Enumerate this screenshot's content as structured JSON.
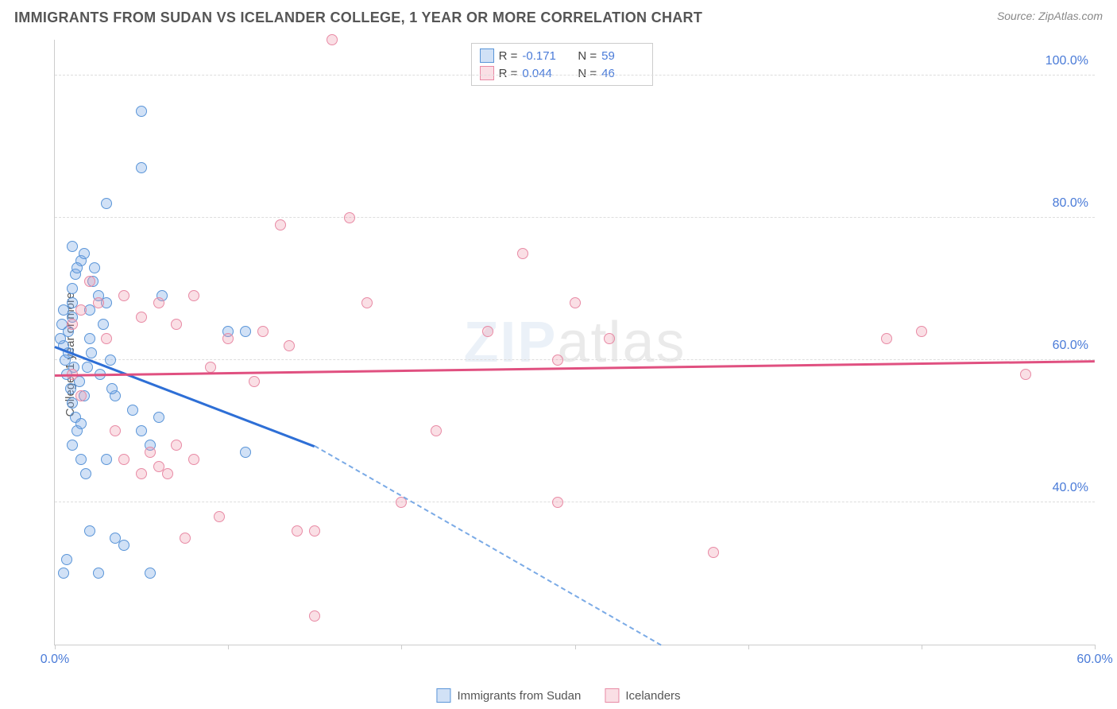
{
  "title": "IMMIGRANTS FROM SUDAN VS ICELANDER COLLEGE, 1 YEAR OR MORE CORRELATION CHART",
  "source": "Source: ZipAtlas.com",
  "ylabel": "College, 1 year or more",
  "watermark": {
    "bold": "ZIP",
    "thin": "atlas"
  },
  "chart": {
    "type": "scatter",
    "xlim": [
      0,
      60
    ],
    "ylim": [
      20,
      105
    ],
    "yticks": [
      {
        "v": 40,
        "label": "40.0%"
      },
      {
        "v": 60,
        "label": "60.0%"
      },
      {
        "v": 80,
        "label": "80.0%"
      },
      {
        "v": 100,
        "label": "100.0%"
      }
    ],
    "xticks": [
      0,
      10,
      20,
      30,
      40,
      50,
      60
    ],
    "xtick_labels": {
      "0": "0.0%",
      "60": "60.0%"
    },
    "grid_color": "#dddddd",
    "background_color": "#ffffff",
    "point_radius": 7,
    "colors": {
      "series_a_fill": "rgba(122,170,230,0.35)",
      "series_a_stroke": "#5a95d8",
      "series_a_trend": "#2e6fd6",
      "series_b_fill": "rgba(240,150,170,0.3)",
      "series_b_stroke": "#e88aa5",
      "series_b_trend": "#e05080",
      "accent_text": "#4a7bd8"
    },
    "series": [
      {
        "key": "a",
        "name": "Immigrants from Sudan",
        "R": "-0.171",
        "N": "59",
        "trend": {
          "x1": 0,
          "y1": 62,
          "x2_solid": 15,
          "y2_solid": 48,
          "x2_dash": 35,
          "y2_dash": 20
        },
        "points": [
          [
            0.5,
            62
          ],
          [
            0.8,
            64
          ],
          [
            1,
            66
          ],
          [
            1,
            68
          ],
          [
            1,
            70
          ],
          [
            1.2,
            72
          ],
          [
            1.5,
            74
          ],
          [
            0.6,
            60
          ],
          [
            0.7,
            58
          ],
          [
            0.9,
            56
          ],
          [
            1,
            54
          ],
          [
            1.2,
            52
          ],
          [
            1.3,
            50
          ],
          [
            1.5,
            51
          ],
          [
            1.7,
            55
          ],
          [
            2,
            63
          ],
          [
            2,
            67
          ],
          [
            2.2,
            71
          ],
          [
            2.5,
            69
          ],
          [
            2.8,
            65
          ],
          [
            3,
            68
          ],
          [
            3,
            82
          ],
          [
            3.2,
            60
          ],
          [
            3.5,
            55
          ],
          [
            3.5,
            35
          ],
          [
            4,
            34
          ],
          [
            4.5,
            53
          ],
          [
            5,
            95
          ],
          [
            5,
            87
          ],
          [
            5,
            50
          ],
          [
            5.5,
            48
          ],
          [
            5.5,
            30
          ],
          [
            6,
            52
          ],
          [
            6.2,
            69
          ],
          [
            1,
            48
          ],
          [
            1.5,
            46
          ],
          [
            1.8,
            44
          ],
          [
            2,
            36
          ],
          [
            2.5,
            30
          ],
          [
            0.5,
            30
          ],
          [
            0.7,
            32
          ],
          [
            3,
            46
          ],
          [
            11,
            47
          ],
          [
            11,
            64
          ],
          [
            10,
            64
          ],
          [
            1,
            76
          ],
          [
            1.3,
            73
          ],
          [
            1.7,
            75
          ],
          [
            2.3,
            73
          ],
          [
            0.4,
            65
          ],
          [
            0.5,
            67
          ],
          [
            0.3,
            63
          ],
          [
            0.8,
            61
          ],
          [
            1.1,
            59
          ],
          [
            1.4,
            57
          ],
          [
            1.9,
            59
          ],
          [
            2.1,
            61
          ],
          [
            2.6,
            58
          ],
          [
            3.3,
            56
          ]
        ]
      },
      {
        "key": "b",
        "name": "Icelanders",
        "R": "0.044",
        "N": "46",
        "trend": {
          "x1": 0,
          "y1": 58,
          "x2": 60,
          "y2": 60
        },
        "points": [
          [
            1,
            65
          ],
          [
            1.5,
            67
          ],
          [
            2,
            71
          ],
          [
            2.5,
            68
          ],
          [
            3,
            63
          ],
          [
            4,
            69
          ],
          [
            5,
            66
          ],
          [
            6,
            68
          ],
          [
            7,
            65
          ],
          [
            8,
            69
          ],
          [
            5,
            44
          ],
          [
            6,
            45
          ],
          [
            7,
            48
          ],
          [
            8,
            46
          ],
          [
            9,
            59
          ],
          [
            10,
            63
          ],
          [
            12,
            64
          ],
          [
            13,
            79
          ],
          [
            14,
            36
          ],
          [
            15,
            36
          ],
          [
            16,
            105
          ],
          [
            17,
            80
          ],
          [
            18,
            68
          ],
          [
            20,
            40
          ],
          [
            22,
            50
          ],
          [
            25,
            64
          ],
          [
            27,
            75
          ],
          [
            29,
            60
          ],
          [
            29,
            40
          ],
          [
            30,
            68
          ],
          [
            32,
            63
          ],
          [
            38,
            33
          ],
          [
            48,
            63
          ],
          [
            50,
            64
          ],
          [
            56,
            58
          ],
          [
            1,
            58
          ],
          [
            1.5,
            55
          ],
          [
            3.5,
            50
          ],
          [
            4,
            46
          ],
          [
            5.5,
            47
          ],
          [
            6.5,
            44
          ],
          [
            9.5,
            38
          ],
          [
            11.5,
            57
          ],
          [
            13.5,
            62
          ],
          [
            15,
            24
          ],
          [
            7.5,
            35
          ]
        ]
      }
    ]
  },
  "legend_top": {
    "rows": [
      {
        "series": "a",
        "r_label": "R = ",
        "r_val": "-0.171",
        "n_label": "N = ",
        "n_val": "59"
      },
      {
        "series": "b",
        "r_label": "R = ",
        "r_val": "0.044",
        "n_label": "N = ",
        "n_val": "46"
      }
    ]
  },
  "legend_bottom": [
    {
      "series": "a",
      "label": "Immigrants from Sudan"
    },
    {
      "series": "b",
      "label": "Icelanders"
    }
  ]
}
